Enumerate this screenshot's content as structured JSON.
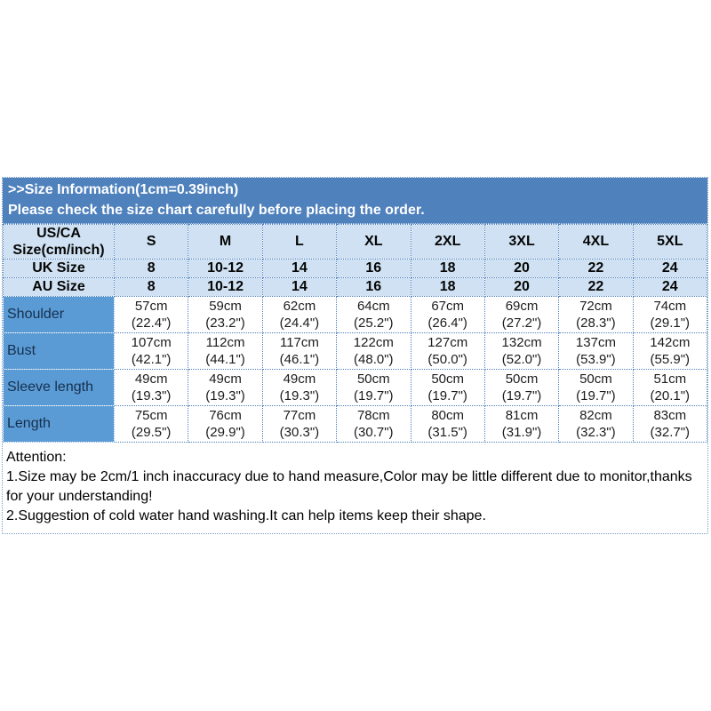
{
  "colors": {
    "banner_bg": "#4f81bd",
    "header_row_bg": "#cfe1f2",
    "label_column_bg": "#5b9bd5",
    "grid_dotted": "#4f81bd",
    "banner_text": "#ffffff",
    "body_text": "#000000"
  },
  "banner": {
    "line1": ">>Size Information(1cm=0.39inch)",
    "line2": "Please check the size chart carefully before placing the order."
  },
  "table": {
    "corner_header": "US/CA Size(cm/inch)",
    "sizes": [
      "S",
      "M",
      "L",
      "XL",
      "2XL",
      "3XL",
      "4XL",
      "5XL"
    ],
    "size_rows": [
      {
        "label": "UK Size",
        "values": [
          "8",
          "10-12",
          "14",
          "16",
          "18",
          "20",
          "22",
          "24"
        ]
      },
      {
        "label": "AU Size",
        "values": [
          "8",
          "10-12",
          "14",
          "16",
          "18",
          "20",
          "22",
          "24"
        ]
      }
    ],
    "measurement_rows": [
      {
        "label": "Shoulder",
        "values": [
          {
            "cm": "57cm",
            "in": "(22.4\")"
          },
          {
            "cm": "59cm",
            "in": "(23.2\")"
          },
          {
            "cm": "62cm",
            "in": "(24.4\")"
          },
          {
            "cm": "64cm",
            "in": "(25.2\")"
          },
          {
            "cm": "67cm",
            "in": "(26.4\")"
          },
          {
            "cm": "69cm",
            "in": "(27.2\")"
          },
          {
            "cm": "72cm",
            "in": "(28.3\")"
          },
          {
            "cm": "74cm",
            "in": "(29.1\")"
          }
        ]
      },
      {
        "label": "Bust",
        "values": [
          {
            "cm": "107cm",
            "in": "(42.1\")"
          },
          {
            "cm": "112cm",
            "in": "(44.1\")"
          },
          {
            "cm": "117cm",
            "in": "(46.1\")"
          },
          {
            "cm": "122cm",
            "in": "(48.0\")"
          },
          {
            "cm": "127cm",
            "in": "(50.0\")"
          },
          {
            "cm": "132cm",
            "in": "(52.0\")"
          },
          {
            "cm": "137cm",
            "in": "(53.9\")"
          },
          {
            "cm": "142cm",
            "in": "(55.9\")"
          }
        ]
      },
      {
        "label": "Sleeve length",
        "values": [
          {
            "cm": "49cm",
            "in": "(19.3\")"
          },
          {
            "cm": "49cm",
            "in": "(19.3\")"
          },
          {
            "cm": "49cm",
            "in": "(19.3\")"
          },
          {
            "cm": "50cm",
            "in": "(19.7\")"
          },
          {
            "cm": "50cm",
            "in": "(19.7\")"
          },
          {
            "cm": "50cm",
            "in": "(19.7\")"
          },
          {
            "cm": "50cm",
            "in": "(19.7\")"
          },
          {
            "cm": "51cm",
            "in": "(20.1\")"
          }
        ]
      },
      {
        "label": "Length",
        "values": [
          {
            "cm": "75cm",
            "in": "(29.5\")"
          },
          {
            "cm": "76cm",
            "in": "(29.9\")"
          },
          {
            "cm": "77cm",
            "in": "(30.3\")"
          },
          {
            "cm": "78cm",
            "in": "(30.7\")"
          },
          {
            "cm": "80cm",
            "in": "(31.5\")"
          },
          {
            "cm": "81cm",
            "in": "(31.9\")"
          },
          {
            "cm": "82cm",
            "in": "(32.3\")"
          },
          {
            "cm": "83cm",
            "in": "(32.7\")"
          }
        ]
      }
    ]
  },
  "attention": {
    "title": "Attention:",
    "note1": "1.Size may be 2cm/1 inch inaccuracy due to hand measure,Color may be little different due to monitor,thanks for your understanding!",
    "note2": "2.Suggestion of cold water hand washing.It can help items keep their shape."
  }
}
